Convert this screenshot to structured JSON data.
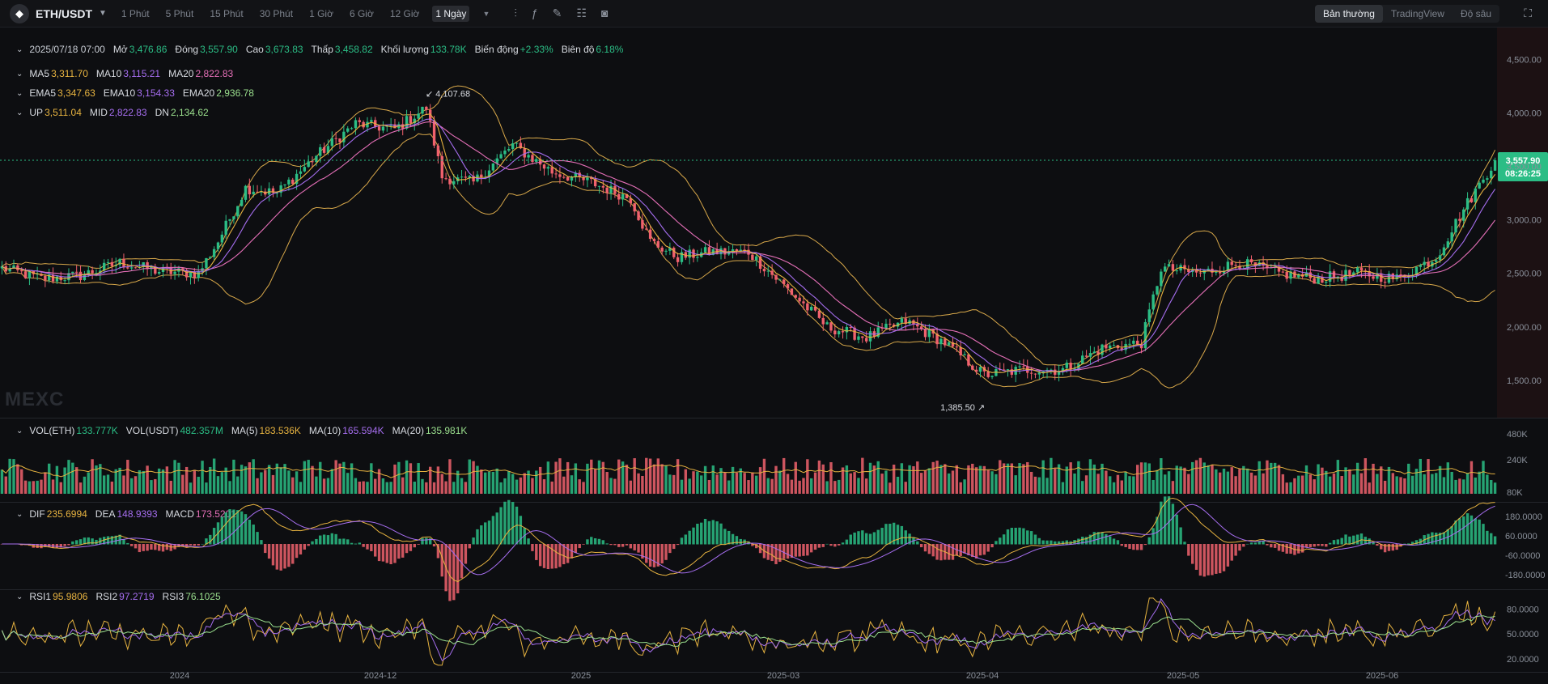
{
  "header": {
    "pair": "ETH/USDT",
    "timeframes": [
      "1 Phút",
      "5 Phút",
      "15 Phút",
      "30 Phút",
      "1 Giờ",
      "6 Giờ",
      "12 Giờ",
      "1 Ngày"
    ],
    "active_timeframe": "1 Ngày",
    "views": [
      "Bản thường",
      "TradingView",
      "Độ sâu"
    ],
    "active_view": "Bản thường",
    "tool_icons": [
      "indicator-icon",
      "formula-icon",
      "pencil-icon",
      "layout-icon",
      "camera-icon"
    ]
  },
  "ohlc": {
    "date": "2025/07/18 07:00",
    "open_label": "Mở",
    "open": "3,476.86",
    "close_label": "Đóng",
    "close": "3,557.90",
    "high_label": "Cao",
    "high": "3,673.83",
    "low_label": "Thấp",
    "low": "3,458.82",
    "volume_label": "Khối lượng",
    "volume": "133.78K",
    "change_label": "Biến động",
    "change": "+2.33%",
    "amplitude_label": "Biên độ",
    "amplitude": "6.18%"
  },
  "ma": {
    "ma5_label": "MA5",
    "ma5": "3,311.70",
    "ma10_label": "MA10",
    "ma10": "3,115.21",
    "ma20_label": "MA20",
    "ma20": "2,822.83"
  },
  "ema": {
    "ema5_label": "EMA5",
    "ema5": "3,347.63",
    "ema10_label": "EMA10",
    "ema10": "3,154.33",
    "ema20_label": "EMA20",
    "ema20": "2,936.78"
  },
  "boll": {
    "up_label": "UP",
    "up": "3,511.04",
    "mid_label": "MID",
    "mid": "2,822.83",
    "dn_label": "DN",
    "dn": "2,134.62"
  },
  "volume_legend": {
    "vol_eth_label": "VOL(ETH)",
    "vol_eth": "133.777K",
    "vol_usdt_label": "VOL(USDT)",
    "vol_usdt": "482.357M",
    "ma5_label": "MA(5)",
    "ma5": "183.536K",
    "ma10_label": "MA(10)",
    "ma10": "165.594K",
    "ma20_label": "MA(20)",
    "ma20": "135.981K"
  },
  "macd_legend": {
    "dif_label": "DIF",
    "dif": "235.6994",
    "dea_label": "DEA",
    "dea": "148.9393",
    "macd_label": "MACD",
    "macd": "173.5201"
  },
  "rsi_legend": {
    "rsi1_label": "RSI1",
    "rsi1": "95.9806",
    "rsi2_label": "RSI2",
    "rsi2": "97.2719",
    "rsi3_label": "RSI3",
    "rsi3": "76.1025"
  },
  "watermark": "MEXC",
  "colors": {
    "up": "#2bbd85",
    "down": "#f0616d",
    "ma5": "#e7b340",
    "ma10": "#a66ef0",
    "ma20": "#e46fb7",
    "boll": "#d8a84a",
    "bg": "#0d0e11"
  },
  "chart_data": {
    "type": "candlestick",
    "price_axis": {
      "ticks": [
        1500,
        2000,
        2500,
        3000,
        3500,
        4000,
        4500
      ],
      "tick_labels": [
        "1,500.00",
        "2,000.00",
        "2,500.00",
        "3,000.00",
        "3,500.00",
        "4,000.00",
        "4,500.00"
      ],
      "range": [
        1150,
        4800
      ]
    },
    "current_price": "3,557.90",
    "countdown": "08:26:25",
    "high_marker": "4,107.68",
    "low_marker": "1,385.50",
    "x_tick_labels": [
      "2024",
      "2024-12",
      "2025",
      "2025-03",
      "2025-04",
      "2025-05",
      "2025-06"
    ],
    "volume_axis": {
      "ticks": [
        "480K",
        "240K",
        "80K"
      ]
    },
    "macd_axis": {
      "ticks": [
        "180.0000",
        "60.0000",
        "-60.0000",
        "-180.0000"
      ]
    },
    "rsi_axis": {
      "ticks": [
        "80.0000",
        "50.0000",
        "20.0000"
      ]
    },
    "price_keypoints": [
      [
        0,
        2550
      ],
      [
        10,
        2450
      ],
      [
        20,
        2480
      ],
      [
        30,
        2600
      ],
      [
        40,
        2520
      ],
      [
        50,
        2500
      ],
      [
        55,
        2800
      ],
      [
        62,
        3300
      ],
      [
        70,
        3250
      ],
      [
        80,
        3600
      ],
      [
        90,
        3900
      ],
      [
        100,
        3850
      ],
      [
        108,
        4050
      ],
      [
        112,
        3400
      ],
      [
        120,
        3350
      ],
      [
        130,
        3700
      ],
      [
        140,
        3450
      ],
      [
        150,
        3350
      ],
      [
        160,
        3200
      ],
      [
        165,
        2800
      ],
      [
        172,
        2650
      ],
      [
        180,
        2700
      ],
      [
        190,
        2700
      ],
      [
        200,
        2350
      ],
      [
        210,
        2000
      ],
      [
        220,
        1900
      ],
      [
        230,
        2050
      ],
      [
        240,
        1850
      ],
      [
        250,
        1550
      ],
      [
        260,
        1600
      ],
      [
        270,
        1600
      ],
      [
        280,
        1800
      ],
      [
        290,
        1850
      ],
      [
        295,
        2550
      ],
      [
        305,
        2500
      ],
      [
        315,
        2600
      ],
      [
        325,
        2500
      ],
      [
        335,
        2450
      ],
      [
        345,
        2500
      ],
      [
        355,
        2450
      ],
      [
        365,
        2650
      ],
      [
        372,
        3100
      ],
      [
        380,
        3558
      ]
    ]
  }
}
